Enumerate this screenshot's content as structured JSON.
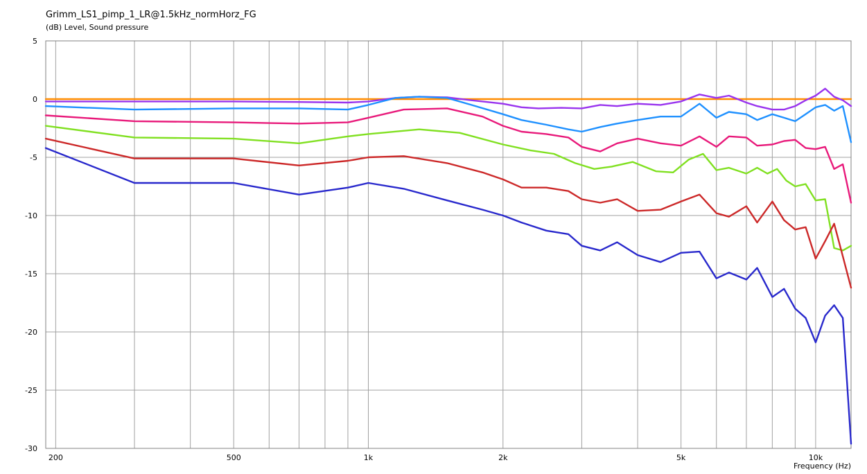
{
  "chart_data": {
    "type": "line",
    "title": "Grimm_LS1_pimp_1_LR@1.5kHz_normHorz_FG",
    "ylabel": "(dB)  Level, Sound pressure",
    "xlabel": "Frequency  (Hz)",
    "x_scale": "log",
    "xlim": [
      190,
      12000
    ],
    "ylim": [
      -30,
      5
    ],
    "grid": true,
    "legend": "none",
    "y_ticks": [
      5,
      0,
      -5,
      -10,
      -15,
      -20,
      -25,
      -30
    ],
    "y_tick_labels": [
      "5",
      "0",
      "-5",
      "-10",
      "-15",
      "-20",
      "-25",
      "-30"
    ],
    "x_ticks": [
      200,
      500,
      1000,
      2000,
      5000,
      10000
    ],
    "x_tick_labels": [
      "200",
      "500",
      "1k",
      "2k",
      "5k",
      "10k"
    ],
    "x_minor_grid": [
      200,
      300,
      400,
      500,
      600,
      700,
      800,
      900,
      1000,
      2000,
      3000,
      4000,
      5000,
      6000,
      7000,
      8000,
      9000,
      10000
    ],
    "series": [
      {
        "color": "#ff8c00",
        "x": [
          190,
          12000
        ],
        "y": [
          0,
          0
        ]
      },
      {
        "color": "#9933ee",
        "x": [
          190,
          300,
          500,
          700,
          900,
          1000,
          1150,
          1300,
          1500,
          1700,
          2000,
          2200,
          2400,
          2700,
          3000,
          3300,
          3600,
          4000,
          4500,
          5000,
          5500,
          6000,
          6400,
          7000,
          7400,
          8000,
          8500,
          9000,
          9500,
          10000,
          10500,
          11000,
          11500,
          12000
        ],
        "y": [
          -0.2,
          -0.2,
          -0.2,
          -0.25,
          -0.3,
          -0.2,
          0.1,
          0.2,
          0.15,
          -0.1,
          -0.4,
          -0.7,
          -0.8,
          -0.75,
          -0.8,
          -0.5,
          -0.6,
          -0.4,
          -0.5,
          -0.2,
          0.4,
          0.1,
          0.3,
          -0.3,
          -0.6,
          -0.9,
          -0.9,
          -0.6,
          -0.1,
          0.3,
          0.9,
          0.2,
          -0.1,
          -0.6
        ]
      },
      {
        "color": "#1e90ff",
        "x": [
          190,
          300,
          500,
          700,
          900,
          1000,
          1150,
          1300,
          1500,
          1700,
          2000,
          2200,
          2500,
          2800,
          3000,
          3300,
          3600,
          4000,
          4500,
          5000,
          5500,
          6000,
          6400,
          7000,
          7400,
          8000,
          8500,
          9000,
          9500,
          10000,
          10500,
          11000,
          11500,
          12000
        ],
        "y": [
          -0.6,
          -0.9,
          -0.8,
          -0.8,
          -0.9,
          -0.5,
          0.1,
          0.2,
          0.1,
          -0.5,
          -1.3,
          -1.8,
          -2.2,
          -2.6,
          -2.8,
          -2.4,
          -2.1,
          -1.8,
          -1.5,
          -1.5,
          -0.4,
          -1.6,
          -1.1,
          -1.3,
          -1.8,
          -1.3,
          -1.6,
          -1.9,
          -1.3,
          -0.7,
          -0.5,
          -1.0,
          -0.6,
          -3.7
        ]
      },
      {
        "color": "#e8197a",
        "x": [
          190,
          300,
          500,
          700,
          900,
          1000,
          1200,
          1500,
          1800,
          2000,
          2200,
          2500,
          2800,
          3000,
          3300,
          3600,
          4000,
          4500,
          5000,
          5500,
          6000,
          6400,
          7000,
          7400,
          8000,
          8500,
          9000,
          9500,
          10000,
          10500,
          11000,
          11500,
          12000
        ],
        "y": [
          -1.4,
          -1.9,
          -2.0,
          -2.1,
          -2.0,
          -1.6,
          -0.9,
          -0.8,
          -1.5,
          -2.3,
          -2.8,
          -3.0,
          -3.3,
          -4.1,
          -4.5,
          -3.8,
          -3.4,
          -3.8,
          -4.0,
          -3.2,
          -4.1,
          -3.2,
          -3.3,
          -4.0,
          -3.9,
          -3.6,
          -3.5,
          -4.2,
          -4.3,
          -4.1,
          -6.0,
          -5.6,
          -8.9
        ]
      },
      {
        "color": "#80e020",
        "x": [
          190,
          300,
          500,
          700,
          900,
          1000,
          1300,
          1600,
          2000,
          2300,
          2600,
          2900,
          3200,
          3500,
          3900,
          4400,
          4800,
          5200,
          5600,
          6000,
          6400,
          7000,
          7400,
          7800,
          8200,
          8600,
          9000,
          9500,
          10000,
          10500,
          11000,
          11500,
          12000
        ],
        "y": [
          -2.3,
          -3.3,
          -3.4,
          -3.8,
          -3.2,
          -3.0,
          -2.6,
          -2.9,
          -3.9,
          -4.4,
          -4.7,
          -5.5,
          -6.0,
          -5.8,
          -5.4,
          -6.2,
          -6.3,
          -5.2,
          -4.7,
          -6.1,
          -5.9,
          -6.4,
          -5.9,
          -6.4,
          -6.0,
          -7.0,
          -7.5,
          -7.3,
          -8.7,
          -8.6,
          -12.8,
          -13.0,
          -12.6
        ]
      },
      {
        "color": "#cc2828",
        "x": [
          190,
          300,
          500,
          700,
          900,
          1000,
          1200,
          1500,
          1800,
          2000,
          2200,
          2500,
          2800,
          3000,
          3300,
          3600,
          4000,
          4500,
          5000,
          5500,
          6000,
          6400,
          7000,
          7400,
          8000,
          8500,
          9000,
          9500,
          10000,
          10500,
          11000,
          11500,
          12000
        ],
        "y": [
          -3.4,
          -5.1,
          -5.1,
          -5.7,
          -5.3,
          -5.0,
          -4.9,
          -5.5,
          -6.3,
          -6.9,
          -7.6,
          -7.6,
          -7.9,
          -8.6,
          -8.9,
          -8.6,
          -9.6,
          -9.5,
          -8.8,
          -8.2,
          -9.8,
          -10.1,
          -9.2,
          -10.6,
          -8.8,
          -10.4,
          -11.2,
          -11.0,
          -13.7,
          -12.2,
          -10.7,
          -13.5,
          -16.2
        ]
      },
      {
        "color": "#2828cc",
        "x": [
          190,
          300,
          500,
          700,
          900,
          1000,
          1200,
          1500,
          1800,
          2000,
          2200,
          2500,
          2800,
          3000,
          3300,
          3600,
          4000,
          4500,
          5000,
          5500,
          6000,
          6400,
          7000,
          7400,
          8000,
          8500,
          9000,
          9500,
          10000,
          10500,
          11000,
          11500,
          12000
        ],
        "y": [
          -4.2,
          -7.2,
          -7.2,
          -8.2,
          -7.6,
          -7.2,
          -7.7,
          -8.7,
          -9.5,
          -10.0,
          -10.6,
          -11.3,
          -11.6,
          -12.6,
          -13.0,
          -12.3,
          -13.4,
          -14.0,
          -13.2,
          -13.1,
          -15.4,
          -14.9,
          -15.5,
          -14.5,
          -17.0,
          -16.3,
          -18.0,
          -18.8,
          -20.9,
          -18.6,
          -17.7,
          -18.8,
          -29.6
        ]
      }
    ]
  }
}
